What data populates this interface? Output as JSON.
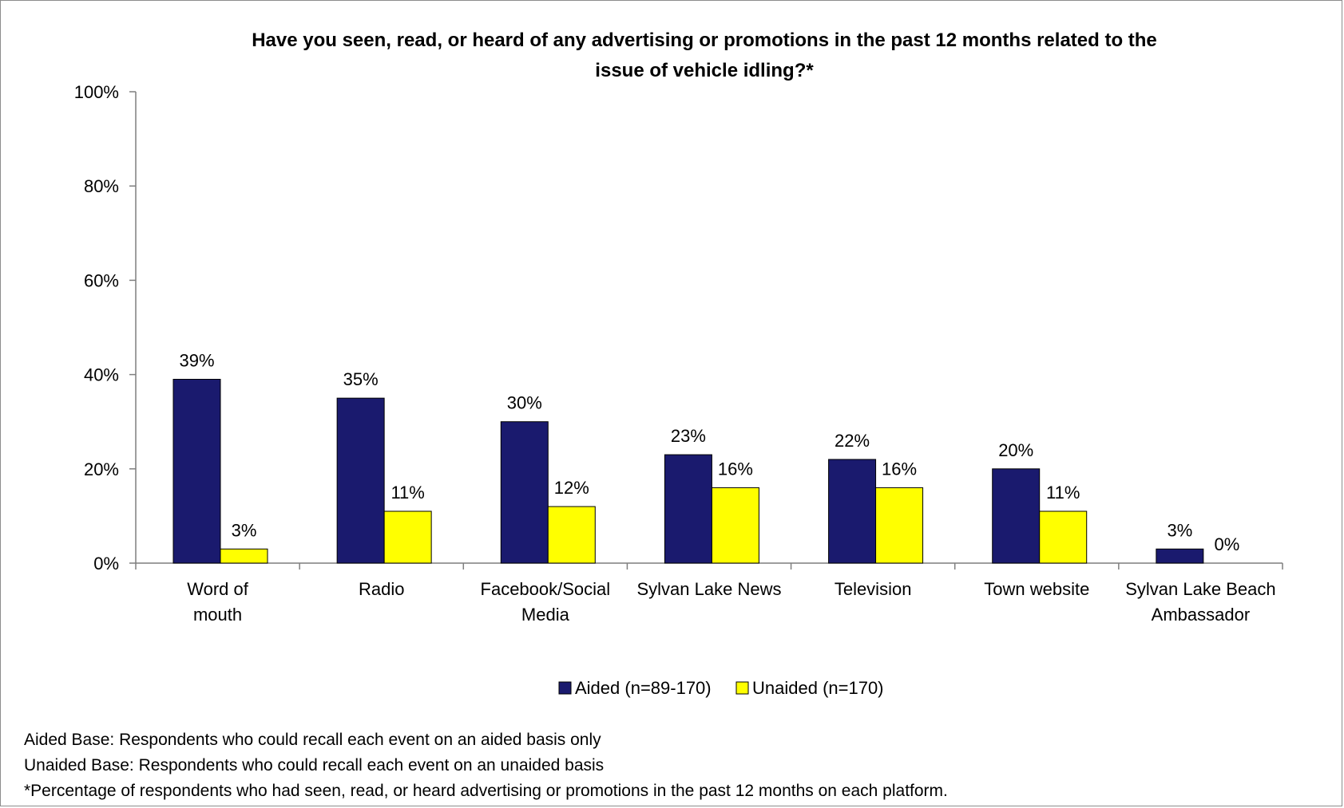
{
  "chart_data": {
    "type": "bar",
    "title_lines": [
      "Have you seen, read, or heard of any advertising or promotions in the past 12 months related to the",
      "issue of vehicle idling?*"
    ],
    "categories": [
      [
        "Word of",
        "mouth"
      ],
      [
        "Radio"
      ],
      [
        "Facebook/Social",
        "Media"
      ],
      [
        "Sylvan Lake News"
      ],
      [
        "Television"
      ],
      [
        "Town website"
      ],
      [
        "Sylvan Lake Beach",
        "Ambassador"
      ]
    ],
    "series": [
      {
        "name": "Aided (n=89-170)",
        "color": "#1a1a6e",
        "values": [
          39,
          35,
          30,
          23,
          22,
          20,
          3
        ],
        "labels": [
          "39%",
          "35%",
          "30%",
          "23%",
          "22%",
          "20%",
          "3%"
        ]
      },
      {
        "name": "Unaided (n=170)",
        "color": "#ffff00",
        "values": [
          3,
          11,
          12,
          16,
          16,
          11,
          0
        ],
        "labels": [
          "3%",
          "11%",
          "12%",
          "16%",
          "16%",
          "11%",
          "0%"
        ]
      }
    ],
    "ylim": [
      0,
      100
    ],
    "yticks": [
      0,
      20,
      40,
      60,
      80,
      100
    ],
    "ytick_labels": [
      "0%",
      "20%",
      "40%",
      "60%",
      "80%",
      "100%"
    ],
    "grid": false,
    "legend_position": "bottom-center"
  },
  "notes": [
    "Aided Base: Respondents who could recall each event on an aided basis only",
    "Unaided Base: Respondents who could recall each event on an unaided basis",
    "*Percentage of respondents who had seen, read, or heard advertising or promotions in the past 12 months on each platform."
  ]
}
